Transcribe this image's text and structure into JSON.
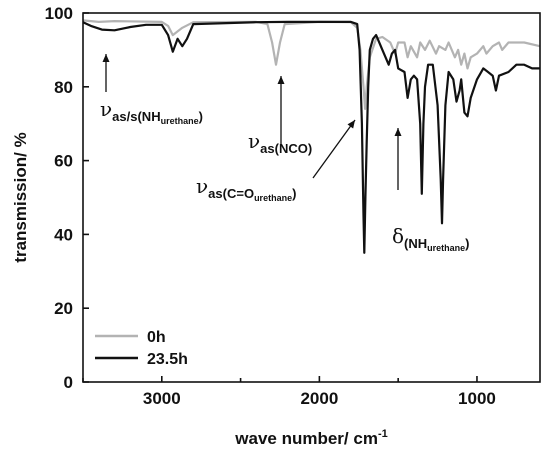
{
  "chart_data": {
    "type": "line",
    "xlabel": "wave number/ cm",
    "xlabel_sup": "-1",
    "ylabel": "transmission/ %",
    "xlim": [
      3500,
      600
    ],
    "ylim": [
      0,
      100
    ],
    "x_ticks": [
      3000,
      2000,
      1000
    ],
    "y_ticks": [
      0,
      20,
      40,
      60,
      80,
      100
    ],
    "legend_position": "bottom-left",
    "grid": false,
    "series": [
      {
        "name": "0h",
        "color": "#b3b3b3",
        "points": [
          [
            3500,
            98
          ],
          [
            3400,
            97.6
          ],
          [
            3300,
            97.8
          ],
          [
            3000,
            97.6
          ],
          [
            2960,
            96.5
          ],
          [
            2930,
            94
          ],
          [
            2900,
            95
          ],
          [
            2870,
            96
          ],
          [
            2800,
            97.5
          ],
          [
            2400,
            97.6
          ],
          [
            2330,
            97
          ],
          [
            2300,
            92
          ],
          [
            2275,
            86
          ],
          [
            2250,
            92
          ],
          [
            2220,
            97
          ],
          [
            2000,
            97.6
          ],
          [
            1800,
            97.5
          ],
          [
            1760,
            96
          ],
          [
            1740,
            90
          ],
          [
            1720,
            80
          ],
          [
            1710,
            74
          ],
          [
            1700,
            80
          ],
          [
            1680,
            88
          ],
          [
            1640,
            93
          ],
          [
            1600,
            93.5
          ],
          [
            1550,
            92
          ],
          [
            1520,
            89
          ],
          [
            1500,
            92
          ],
          [
            1460,
            92
          ],
          [
            1440,
            88
          ],
          [
            1420,
            91
          ],
          [
            1380,
            88
          ],
          [
            1360,
            92
          ],
          [
            1330,
            90
          ],
          [
            1300,
            92.5
          ],
          [
            1260,
            89
          ],
          [
            1240,
            91
          ],
          [
            1200,
            90
          ],
          [
            1180,
            92
          ],
          [
            1140,
            88
          ],
          [
            1120,
            90
          ],
          [
            1100,
            86
          ],
          [
            1080,
            89
          ],
          [
            1060,
            85
          ],
          [
            1040,
            88
          ],
          [
            1000,
            89
          ],
          [
            960,
            91
          ],
          [
            940,
            89
          ],
          [
            900,
            91
          ],
          [
            860,
            92
          ],
          [
            840,
            90
          ],
          [
            800,
            92
          ],
          [
            700,
            92
          ],
          [
            600,
            91
          ]
        ]
      },
      {
        "name": "23.5h",
        "color": "#111111",
        "points": [
          [
            3500,
            97.5
          ],
          [
            3450,
            96.5
          ],
          [
            3380,
            95.5
          ],
          [
            3300,
            95.3
          ],
          [
            3200,
            96.2
          ],
          [
            3100,
            96.8
          ],
          [
            3000,
            96.8
          ],
          [
            2960,
            94
          ],
          [
            2930,
            89.5
          ],
          [
            2900,
            93
          ],
          [
            2870,
            91
          ],
          [
            2840,
            93
          ],
          [
            2800,
            97
          ],
          [
            2400,
            97.5
          ],
          [
            2200,
            97.6
          ],
          [
            2000,
            97.6
          ],
          [
            1800,
            97.6
          ],
          [
            1760,
            97
          ],
          [
            1745,
            90
          ],
          [
            1730,
            70
          ],
          [
            1720,
            45
          ],
          [
            1715,
            35
          ],
          [
            1708,
            50
          ],
          [
            1700,
            65
          ],
          [
            1690,
            80
          ],
          [
            1680,
            90
          ],
          [
            1660,
            93
          ],
          [
            1640,
            94
          ],
          [
            1600,
            90
          ],
          [
            1560,
            86
          ],
          [
            1540,
            89
          ],
          [
            1520,
            90
          ],
          [
            1500,
            85
          ],
          [
            1460,
            84
          ],
          [
            1440,
            77
          ],
          [
            1420,
            82
          ],
          [
            1400,
            83
          ],
          [
            1380,
            82
          ],
          [
            1360,
            70
          ],
          [
            1350,
            51
          ],
          [
            1340,
            70
          ],
          [
            1330,
            80
          ],
          [
            1310,
            86
          ],
          [
            1280,
            86
          ],
          [
            1250,
            75
          ],
          [
            1230,
            55
          ],
          [
            1222,
            43
          ],
          [
            1215,
            55
          ],
          [
            1200,
            75
          ],
          [
            1180,
            84
          ],
          [
            1150,
            82
          ],
          [
            1130,
            76
          ],
          [
            1110,
            79
          ],
          [
            1100,
            82
          ],
          [
            1080,
            73
          ],
          [
            1060,
            72
          ],
          [
            1040,
            77
          ],
          [
            1000,
            82
          ],
          [
            960,
            85
          ],
          [
            930,
            84
          ],
          [
            900,
            83
          ],
          [
            880,
            79
          ],
          [
            860,
            83
          ],
          [
            800,
            84
          ],
          [
            750,
            86
          ],
          [
            700,
            86
          ],
          [
            650,
            85
          ],
          [
            600,
            85
          ]
        ]
      }
    ],
    "annotations": [
      {
        "symbol": "ν",
        "sub": "as/s(NH",
        "subsub": "urethane",
        "close": ")"
      },
      {
        "symbol": "ν",
        "sub": "as(NCO)",
        "subsub": "",
        "close": ""
      },
      {
        "symbol": "ν",
        "sub": "as(C=O",
        "subsub": "urethane",
        "close": ")"
      },
      {
        "symbol": "δ",
        "sub": "(NH",
        "subsub": "urethane",
        "close": ")"
      }
    ]
  }
}
